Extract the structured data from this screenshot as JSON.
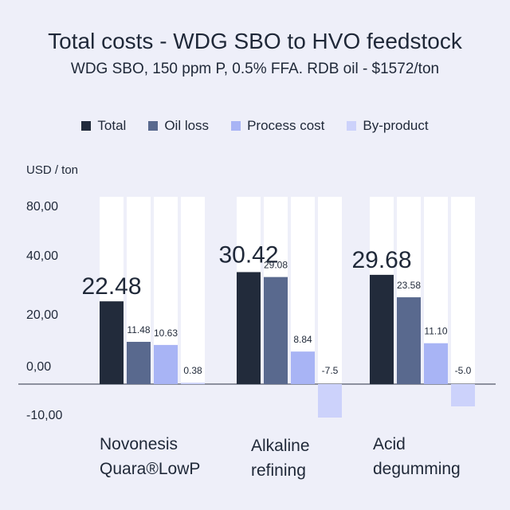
{
  "chart_data": {
    "type": "bar",
    "title": "Total costs - WDG SBO to HVO feedstock",
    "subtitle": "WDG SBO, 150 ppm P, 0.5% FFA. RDB oil - $1572/ton",
    "ylabel": "USD / ton",
    "categories": [
      "Novonesis Quara®LowP",
      "Alkaline refining",
      "Acid degumming"
    ],
    "category_lines": [
      [
        "Novonesis",
        "Quara®LowP"
      ],
      [
        "Alkaline",
        "refining"
      ],
      [
        "Acid",
        "degumming"
      ]
    ],
    "series": [
      {
        "name": "Total",
        "values": [
          22.48,
          30.42,
          29.68
        ],
        "labels": [
          "22.48",
          "30.42",
          "29.68"
        ],
        "color": "#222b3b"
      },
      {
        "name": "Oil loss",
        "values": [
          11.48,
          29.08,
          23.58
        ],
        "labels": [
          "11.48",
          "29.08",
          "23.58"
        ],
        "color": "#59698e"
      },
      {
        "name": "Process cost",
        "values": [
          10.63,
          8.84,
          11.1
        ],
        "labels": [
          "10.63",
          "8.84",
          "11.10"
        ],
        "color": "#a8b4f5"
      },
      {
        "name": "By-product",
        "values": [
          0.38,
          -7.5,
          -5.0
        ],
        "labels": [
          "0.38",
          "-7.5",
          "-5.0"
        ],
        "color": "#ccd2fb"
      }
    ],
    "y_ticks": [
      80,
      40,
      20,
      0,
      -10
    ],
    "y_tick_labels": [
      "80,00",
      "40,00",
      "20,00",
      "0,00",
      "-10,00"
    ],
    "axis_scale": "non-uniform",
    "ylim": [
      -15,
      85
    ],
    "grid": false,
    "background_columns": true,
    "legend_position": "top-center"
  }
}
